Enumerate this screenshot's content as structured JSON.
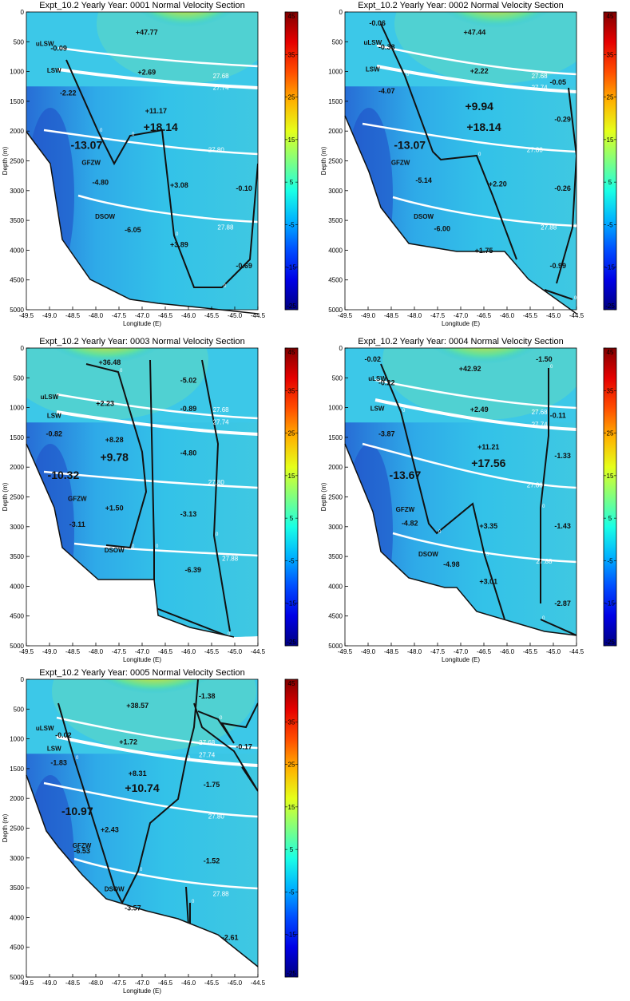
{
  "chart_data": [
    {
      "type": "heatmap",
      "title": "Expt_10.2 Yearly Year: 0001 Normal Velocity Section",
      "xlabel": "Longitude (E)",
      "ylabel": "Depth (m)",
      "xlim": [
        -49.5,
        -44.5
      ],
      "ylim": [
        5000,
        0
      ],
      "x_ticks": [
        "-49.5",
        "-49.0",
        "-48.5",
        "-48.0",
        "-47.5",
        "-47.0",
        "-46.5",
        "-46.0",
        "-45.5",
        "-45.0",
        "-44.5"
      ],
      "y_ticks": [
        "0",
        "500",
        "1000",
        "1500",
        "2000",
        "2500",
        "3000",
        "3500",
        "4000",
        "4500",
        "5000"
      ],
      "colorbar": {
        "min": -25,
        "max": 45,
        "ticks": [
          "45",
          "35",
          "25",
          "15",
          "5",
          "-5",
          "-15",
          "-25"
        ]
      },
      "values": [
        {
          "text": "+47.77",
          "lon": -46.9,
          "depth": 380
        },
        {
          "text": "-0.09",
          "lon": -48.8,
          "depth": 650
        },
        {
          "text": "+2.69",
          "lon": -46.9,
          "depth": 1050
        },
        {
          "text": "-2.22",
          "lon": -48.6,
          "depth": 1400
        },
        {
          "text": "+11.17",
          "lon": -46.7,
          "depth": 1700
        },
        {
          "text": "+18.14",
          "lon": -46.6,
          "depth": 2000
        },
        {
          "text": "-13.07",
          "lon": -48.2,
          "depth": 2300
        },
        {
          "text": "-4.80",
          "lon": -47.9,
          "depth": 2900
        },
        {
          "text": "+3.08",
          "lon": -46.2,
          "depth": 2950
        },
        {
          "text": "-0.10",
          "lon": -44.8,
          "depth": 3000
        },
        {
          "text": "-6.05",
          "lon": -47.2,
          "depth": 3700
        },
        {
          "text": "+3.89",
          "lon": -46.2,
          "depth": 3950
        },
        {
          "text": "-0.69",
          "lon": -44.8,
          "depth": 4300
        }
      ],
      "water_masses": [
        {
          "text": "uLSW",
          "lon": -49.1,
          "depth": 570
        },
        {
          "text": "LSW",
          "lon": -48.9,
          "depth": 1020
        },
        {
          "text": "GFZW",
          "lon": -48.1,
          "depth": 2570
        },
        {
          "text": "DSOW",
          "lon": -47.8,
          "depth": 3470
        }
      ],
      "isopycnals": [
        {
          "label": "27.68",
          "lon": -45.3,
          "depth": 1070
        },
        {
          "label": "27.74",
          "lon": -45.3,
          "depth": 1270
        },
        {
          "label": "27.80",
          "lon": -45.4,
          "depth": 2310
        },
        {
          "label": "27.88",
          "lon": -45.2,
          "depth": 3610
        }
      ],
      "zero_labels": [
        "0",
        "0",
        "0",
        "0",
        "0"
      ]
    },
    {
      "type": "heatmap",
      "title": "Expt_10.2 Yearly Year: 0002 Normal Velocity Section",
      "xlabel": "Longitude (E)",
      "ylabel": "Depth (m)",
      "xlim": [
        -49.5,
        -44.5
      ],
      "ylim": [
        5000,
        0
      ],
      "x_ticks": [
        "-49.5",
        "-49.0",
        "-48.5",
        "-48.0",
        "-47.5",
        "-47.0",
        "-46.5",
        "-46.0",
        "-45.5",
        "-45.0",
        "-44.5"
      ],
      "y_ticks": [
        "0",
        "500",
        "1000",
        "1500",
        "2000",
        "2500",
        "3000",
        "3500",
        "4000",
        "4500",
        "5000"
      ],
      "colorbar": {
        "min": -25,
        "max": 45,
        "ticks": [
          "45",
          "35",
          "25",
          "15",
          "5",
          "-5",
          "-15",
          "-25"
        ]
      },
      "values": [
        {
          "text": "-0.06",
          "lon": -48.8,
          "depth": 230
        },
        {
          "text": "+47.44",
          "lon": -46.7,
          "depth": 380
        },
        {
          "text": "-0.38",
          "lon": -48.6,
          "depth": 630
        },
        {
          "text": "+2.22",
          "lon": -46.6,
          "depth": 1030
        },
        {
          "text": "-0.05",
          "lon": -44.9,
          "depth": 1220
        },
        {
          "text": "-4.07",
          "lon": -48.6,
          "depth": 1370
        },
        {
          "text": "+9.94",
          "lon": -46.6,
          "depth": 1650
        },
        {
          "text": "-0.29",
          "lon": -44.8,
          "depth": 1840
        },
        {
          "text": "+18.14",
          "lon": -46.5,
          "depth": 2000
        },
        {
          "text": "-13.07",
          "lon": -48.1,
          "depth": 2300
        },
        {
          "text": "-5.14",
          "lon": -47.8,
          "depth": 2870
        },
        {
          "text": "+2.20",
          "lon": -46.2,
          "depth": 2930
        },
        {
          "text": "-0.26",
          "lon": -44.8,
          "depth": 3000
        },
        {
          "text": "-6.00",
          "lon": -47.4,
          "depth": 3680
        },
        {
          "text": "+1.75",
          "lon": -46.5,
          "depth": 4050
        },
        {
          "text": "-0.99",
          "lon": -44.9,
          "depth": 4300
        }
      ],
      "water_masses": [
        {
          "text": "uLSW",
          "lon": -48.9,
          "depth": 550
        },
        {
          "text": "LSW",
          "lon": -48.9,
          "depth": 1000
        },
        {
          "text": "GFZW",
          "lon": -48.3,
          "depth": 2570
        },
        {
          "text": "DSOW",
          "lon": -47.8,
          "depth": 3470
        }
      ],
      "isopycnals": [
        {
          "label": "27.68",
          "lon": -45.3,
          "depth": 1070
        },
        {
          "label": "27.74",
          "lon": -45.3,
          "depth": 1270
        },
        {
          "label": "27.80",
          "lon": -45.4,
          "depth": 2310
        },
        {
          "label": "27.88",
          "lon": -45.1,
          "depth": 3610
        }
      ],
      "zero_labels": [
        "0",
        "0",
        "0",
        "0"
      ]
    },
    {
      "type": "heatmap",
      "title": "Expt_10.2 Yearly Year: 0003 Normal Velocity Section",
      "xlabel": "Longitude (E)",
      "ylabel": "Depth (m)",
      "xlim": [
        -49.5,
        -44.5
      ],
      "ylim": [
        5000,
        0
      ],
      "x_ticks": [
        "-49.5",
        "-49.0",
        "-48.5",
        "-48.0",
        "-47.5",
        "-47.0",
        "-46.5",
        "-46.0",
        "-45.5",
        "-45.0",
        "-44.5"
      ],
      "y_ticks": [
        "0",
        "500",
        "1000",
        "1500",
        "2000",
        "2500",
        "3000",
        "3500",
        "4000",
        "4500",
        "5000"
      ],
      "colorbar": {
        "min": -25,
        "max": 45,
        "ticks": [
          "45",
          "35",
          "25",
          "15",
          "5",
          "-5",
          "-15",
          "-25"
        ]
      },
      "values": [
        {
          "text": "+36.48",
          "lon": -47.7,
          "depth": 280
        },
        {
          "text": "-5.02",
          "lon": -46.0,
          "depth": 580
        },
        {
          "text": "+2.23",
          "lon": -47.8,
          "depth": 970
        },
        {
          "text": "-0.89",
          "lon": -46.0,
          "depth": 1060
        },
        {
          "text": "-0.82",
          "lon": -48.9,
          "depth": 1480
        },
        {
          "text": "+8.28",
          "lon": -47.6,
          "depth": 1580
        },
        {
          "text": "-4.80",
          "lon": -46.0,
          "depth": 1800
        },
        {
          "text": "+9.78",
          "lon": -47.6,
          "depth": 1900
        },
        {
          "text": "-10.32",
          "lon": -48.7,
          "depth": 2200
        },
        {
          "text": "+1.50",
          "lon": -47.6,
          "depth": 2730
        },
        {
          "text": "-3.13",
          "lon": -46.0,
          "depth": 2830
        },
        {
          "text": "-3.11",
          "lon": -48.4,
          "depth": 3000
        },
        {
          "text": "-6.39",
          "lon": -45.9,
          "depth": 3770
        }
      ],
      "water_masses": [
        {
          "text": "uLSW",
          "lon": -49.0,
          "depth": 860
        },
        {
          "text": "LSW",
          "lon": -48.9,
          "depth": 1170
        },
        {
          "text": "GFZW",
          "lon": -48.4,
          "depth": 2570
        },
        {
          "text": "DSOW",
          "lon": -47.6,
          "depth": 3430
        }
      ],
      "isopycnals": [
        {
          "label": "27.68",
          "lon": -45.3,
          "depth": 1030
        },
        {
          "label": "27.74",
          "lon": -45.3,
          "depth": 1240
        },
        {
          "label": "27.80",
          "lon": -45.4,
          "depth": 2250
        },
        {
          "label": "27.88",
          "lon": -45.1,
          "depth": 3530
        }
      ],
      "zero_labels": [
        "0",
        "0",
        "0",
        "0",
        "0"
      ]
    },
    {
      "type": "heatmap",
      "title": "Expt_10.2 Yearly Year: 0004 Normal Velocity Section",
      "xlabel": "Longitude (E)",
      "ylabel": "Depth (m)",
      "xlim": [
        -49.5,
        -44.5
      ],
      "ylim": [
        5000,
        0
      ],
      "x_ticks": [
        "-49.5",
        "-49.0",
        "-48.5",
        "-48.0",
        "-47.5",
        "-47.0",
        "-46.5",
        "-46.0",
        "-45.5",
        "-45.0",
        "-44.5"
      ],
      "y_ticks": [
        "0",
        "500",
        "1000",
        "1500",
        "2000",
        "2500",
        "3000",
        "3500",
        "4000",
        "4500",
        "5000"
      ],
      "colorbar": {
        "min": -25,
        "max": 45,
        "ticks": [
          "45",
          "35",
          "25",
          "15",
          "5",
          "-5",
          "-15",
          "-25"
        ]
      },
      "values": [
        {
          "text": "-0.02",
          "lon": -48.9,
          "depth": 230
        },
        {
          "text": "-1.50",
          "lon": -45.2,
          "depth": 230
        },
        {
          "text": "+42.92",
          "lon": -46.8,
          "depth": 390
        },
        {
          "text": "-0.22",
          "lon": -48.6,
          "depth": 620
        },
        {
          "text": "+2.49",
          "lon": -46.6,
          "depth": 1070
        },
        {
          "text": "-0.11",
          "lon": -44.9,
          "depth": 1170
        },
        {
          "text": "-3.87",
          "lon": -48.6,
          "depth": 1480
        },
        {
          "text": "+11.21",
          "lon": -46.4,
          "depth": 1700
        },
        {
          "text": "-1.33",
          "lon": -44.8,
          "depth": 1850
        },
        {
          "text": "+17.56",
          "lon": -46.4,
          "depth": 2000
        },
        {
          "text": "-13.67",
          "lon": -48.2,
          "depth": 2200
        },
        {
          "text": "-4.82",
          "lon": -48.1,
          "depth": 2980
        },
        {
          "text": "+3.35",
          "lon": -46.4,
          "depth": 3030
        },
        {
          "text": "-1.43",
          "lon": -44.8,
          "depth": 3030
        },
        {
          "text": "-4.98",
          "lon": -47.2,
          "depth": 3670
        },
        {
          "text": "+3.01",
          "lon": -46.4,
          "depth": 3960
        },
        {
          "text": "-2.87",
          "lon": -44.8,
          "depth": 4330
        }
      ],
      "water_masses": [
        {
          "text": "uLSW",
          "lon": -48.8,
          "depth": 550
        },
        {
          "text": "LSW",
          "lon": -48.8,
          "depth": 1050
        },
        {
          "text": "GFZW",
          "lon": -48.2,
          "depth": 2750
        },
        {
          "text": "DSOW",
          "lon": -47.7,
          "depth": 3500
        }
      ],
      "isopycnals": [
        {
          "label": "27.68",
          "lon": -45.3,
          "depth": 1070
        },
        {
          "label": "27.74",
          "lon": -45.3,
          "depth": 1280
        },
        {
          "label": "27.80",
          "lon": -45.4,
          "depth": 2300
        },
        {
          "label": "27.88",
          "lon": -45.2,
          "depth": 3580
        }
      ],
      "zero_labels": [
        "0",
        "0",
        "0",
        "0",
        "0",
        "0"
      ]
    },
    {
      "type": "heatmap",
      "title": "Expt_10.2 Yearly Year: 0005 Normal Velocity Section",
      "xlabel": "Longitude (E)",
      "ylabel": "Depth (m)",
      "xlim": [
        -49.5,
        -44.5
      ],
      "ylim": [
        5000,
        0
      ],
      "x_ticks": [
        "-49.5",
        "-49.0",
        "-48.5",
        "-48.0",
        "-47.5",
        "-47.0",
        "-46.5",
        "-46.0",
        "-45.5",
        "-45.0",
        "-44.5"
      ],
      "y_ticks": [
        "0",
        "500",
        "1000",
        "1500",
        "2000",
        "2500",
        "3000",
        "3500",
        "4000",
        "4500",
        "5000"
      ],
      "colorbar": {
        "min": -25,
        "max": 45,
        "ticks": [
          "45",
          "35",
          "25",
          "15",
          "5",
          "-5",
          "-15",
          "-25"
        ]
      },
      "values": [
        {
          "text": "-1.38",
          "lon": -45.6,
          "depth": 320
        },
        {
          "text": "+38.57",
          "lon": -47.1,
          "depth": 480
        },
        {
          "text": "-0.02",
          "lon": -48.7,
          "depth": 980
        },
        {
          "text": "+1.72",
          "lon": -47.3,
          "depth": 1090
        },
        {
          "text": "-0.17",
          "lon": -44.8,
          "depth": 1170
        },
        {
          "text": "-1.83",
          "lon": -48.8,
          "depth": 1440
        },
        {
          "text": "+8.31",
          "lon": -47.1,
          "depth": 1620
        },
        {
          "text": "-1.75",
          "lon": -45.5,
          "depth": 1810
        },
        {
          "text": "+10.74",
          "lon": -47.0,
          "depth": 1890
        },
        {
          "text": "-10.97",
          "lon": -48.4,
          "depth": 2280
        },
        {
          "text": "+2.43",
          "lon": -47.7,
          "depth": 2570
        },
        {
          "text": "-6.53",
          "lon": -48.3,
          "depth": 2920
        },
        {
          "text": "-1.52",
          "lon": -45.5,
          "depth": 3090
        },
        {
          "text": "-3.57",
          "lon": -47.2,
          "depth": 3880
        },
        {
          "text": "-2.61",
          "lon": -45.1,
          "depth": 4380
        }
      ],
      "water_masses": [
        {
          "text": "uLSW",
          "lon": -49.1,
          "depth": 860
        },
        {
          "text": "LSW",
          "lon": -48.9,
          "depth": 1200
        },
        {
          "text": "GFZW",
          "lon": -48.3,
          "depth": 2830
        },
        {
          "text": "DSOW",
          "lon": -47.6,
          "depth": 3560
        }
      ],
      "isopycnals": [
        {
          "label": "27.68",
          "lon": -45.6,
          "depth": 1060
        },
        {
          "label": "27.74",
          "lon": -45.6,
          "depth": 1270
        },
        {
          "label": "27.80",
          "lon": -45.4,
          "depth": 2300
        },
        {
          "label": "27.88",
          "lon": -45.3,
          "depth": 3600
        }
      ],
      "zero_labels": [
        "0",
        "0",
        "0",
        "0",
        "0",
        "0",
        "0"
      ]
    }
  ]
}
